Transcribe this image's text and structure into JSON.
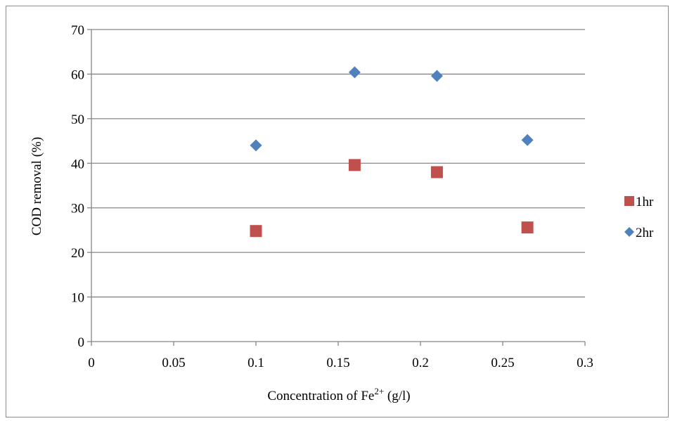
{
  "chart_data": {
    "type": "scatter",
    "title": "",
    "xlabel": "Concentration of Fe",
    "xlabel_sup": "2+",
    "xlabel_suffix": " (g/l)",
    "ylabel": "COD removal (%)",
    "xlim": [
      0,
      0.3
    ],
    "ylim": [
      0,
      70
    ],
    "xticks": [
      0,
      0.05,
      0.1,
      0.15,
      0.2,
      0.25,
      0.3
    ],
    "xtick_labels": [
      "0",
      "0.05",
      "0.1",
      "0.15",
      "0.2",
      "0.25",
      "0.3"
    ],
    "yticks": [
      0,
      10,
      20,
      30,
      40,
      50,
      60,
      70
    ],
    "ytick_labels": [
      "0",
      "10",
      "20",
      "30",
      "40",
      "50",
      "60",
      "70"
    ],
    "grid": "horizontal",
    "legend_position": "right",
    "series": [
      {
        "name": "1hr",
        "marker": "square",
        "color": "#c0504d",
        "points": [
          {
            "x": 0.1,
            "y": 24.8
          },
          {
            "x": 0.16,
            "y": 39.6
          },
          {
            "x": 0.21,
            "y": 38.0
          },
          {
            "x": 0.265,
            "y": 25.6
          }
        ]
      },
      {
        "name": "2hr",
        "marker": "diamond",
        "color": "#4f81bd",
        "points": [
          {
            "x": 0.1,
            "y": 44.0
          },
          {
            "x": 0.16,
            "y": 60.4
          },
          {
            "x": 0.21,
            "y": 59.6
          },
          {
            "x": 0.265,
            "y": 45.2
          }
        ]
      }
    ]
  },
  "colors": {
    "gridline": "#868686",
    "axis": "#868686"
  }
}
